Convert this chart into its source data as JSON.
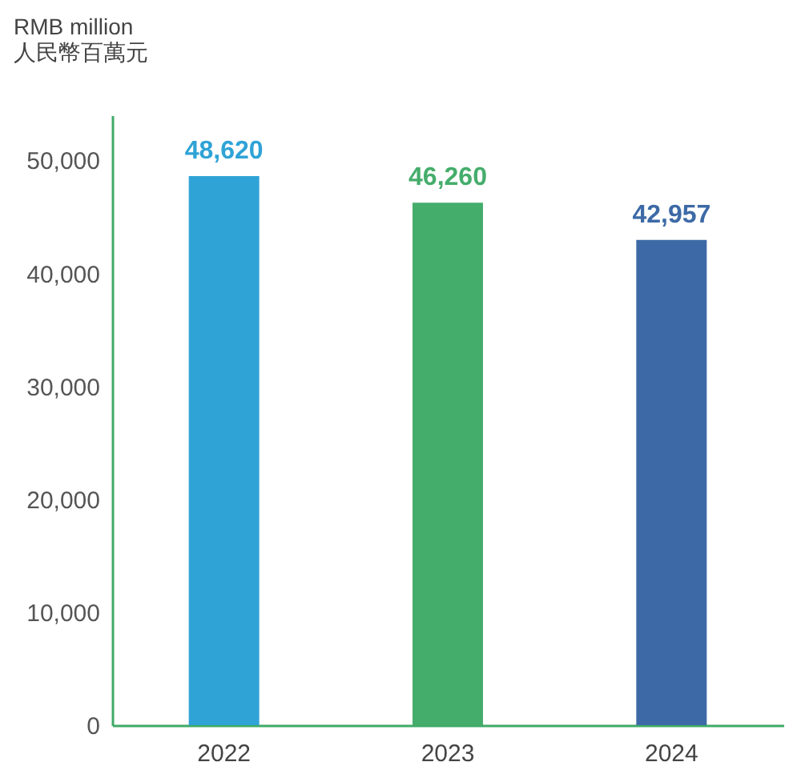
{
  "chart_data": {
    "type": "bar",
    "ylabel": "RMB million\n人民幣百萬元",
    "categories": [
      "2022",
      "2023",
      "2024"
    ],
    "values": [
      48620,
      46260,
      42957
    ],
    "colors": [
      "#2fa3d6",
      "#45ad6c",
      "#3d6aa6"
    ],
    "value_labels": [
      "48,620",
      "46,260",
      "42,957"
    ],
    "ylim": [
      0,
      54000
    ],
    "yticks": [
      0,
      {
        "value": 10000,
        "label": "10,000"
      },
      {
        "value": 20000,
        "label": "20,000"
      },
      {
        "value": 30000,
        "label": "30,000"
      },
      {
        "value": 40000,
        "label": "40,000"
      },
      {
        "value": 50000,
        "label": "50,000"
      }
    ],
    "grid": false
  }
}
